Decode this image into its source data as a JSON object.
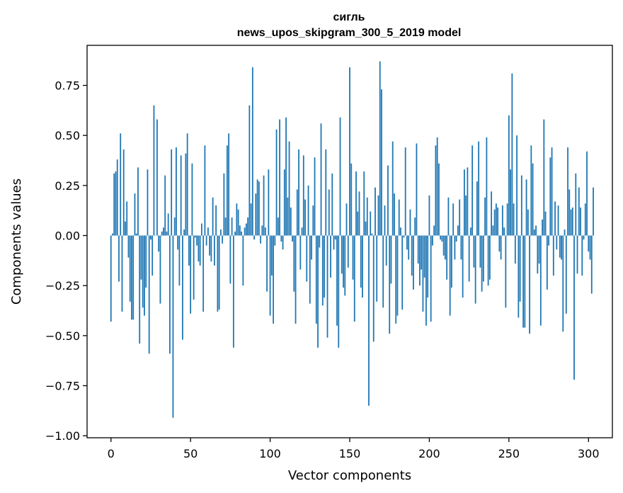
{
  "chart_data": {
    "type": "bar",
    "title_line1": "сигль",
    "title_line2": "news_upos_skipgram_300_5_2019 model",
    "xlabel": "Vector components",
    "ylabel": "Components values",
    "xlim": [
      -15,
      315
    ],
    "ylim": [
      -1.01,
      0.95
    ],
    "xticks": [
      0,
      50,
      100,
      150,
      200,
      250,
      300
    ],
    "xtick_labels": [
      "0",
      "50",
      "100",
      "150",
      "200",
      "250",
      "300"
    ],
    "yticks": [
      -1.0,
      -0.75,
      -0.5,
      -0.25,
      0.0,
      0.25,
      0.5,
      0.75
    ],
    "ytick_labels": [
      "−1.00",
      "−0.75",
      "−0.50",
      "−0.25",
      "0.00",
      "0.25",
      "0.50",
      "0.75"
    ],
    "bar_color": "#1f77b4",
    "values": [
      -0.43,
      0.01,
      0.31,
      0.32,
      0.38,
      -0.23,
      0.51,
      -0.38,
      0.43,
      0.07,
      0.17,
      -0.11,
      -0.33,
      -0.42,
      -0.42,
      0.21,
      0.01,
      0.34,
      -0.54,
      -0.22,
      -0.36,
      -0.4,
      -0.26,
      0.33,
      -0.59,
      -0.02,
      -0.2,
      0.65,
      0.0,
      0.58,
      -0.08,
      -0.34,
      0.02,
      0.04,
      0.3,
      0.02,
      0.11,
      -0.59,
      0.43,
      -0.91,
      0.09,
      0.44,
      -0.07,
      -0.25,
      0.4,
      -0.52,
      0.03,
      0.41,
      0.51,
      -0.15,
      -0.39,
      0.36,
      -0.32,
      -0.01,
      -0.05,
      -0.13,
      -0.15,
      0.06,
      -0.38,
      0.45,
      -0.05,
      0.04,
      -0.1,
      -0.13,
      0.19,
      -0.15,
      0.15,
      -0.38,
      -0.37,
      0.03,
      -0.04,
      0.31,
      0.09,
      0.45,
      0.51,
      -0.24,
      0.09,
      -0.56,
      0.02,
      0.16,
      0.13,
      0.05,
      0.02,
      -0.25,
      0.04,
      0.06,
      0.09,
      0.65,
      0.16,
      0.84,
      -0.02,
      0.21,
      0.28,
      0.27,
      -0.04,
      0.05,
      0.3,
      0.04,
      -0.28,
      0.33,
      -0.4,
      -0.2,
      -0.44,
      -0.05,
      0.53,
      0.09,
      0.58,
      -0.03,
      -0.07,
      0.33,
      0.59,
      0.19,
      0.47,
      0.14,
      -0.03,
      -0.28,
      -0.44,
      0.23,
      0.43,
      -0.17,
      0.04,
      0.4,
      0.18,
      -0.23,
      0.25,
      -0.34,
      -0.12,
      0.15,
      0.39,
      -0.44,
      -0.56,
      -0.06,
      0.56,
      -0.35,
      -0.31,
      0.43,
      -0.51,
      0.23,
      -0.21,
      0.31,
      -0.07,
      -0.02,
      -0.45,
      -0.56,
      0.59,
      -0.19,
      -0.26,
      -0.3,
      0.16,
      -0.16,
      0.84,
      0.36,
      -0.22,
      -0.43,
      0.32,
      0.12,
      0.22,
      -0.26,
      -0.31,
      0.32,
      0.07,
      0.19,
      -0.85,
      0.12,
      0.01,
      -0.53,
      0.24,
      -0.33,
      0.2,
      0.87,
      0.73,
      -0.36,
      0.15,
      -0.15,
      0.35,
      -0.49,
      -0.24,
      0.47,
      0.21,
      -0.44,
      -0.4,
      0.18,
      0.04,
      -0.37,
      -0.01,
      0.44,
      -0.07,
      -0.12,
      0.13,
      -0.2,
      -0.27,
      0.09,
      0.46,
      -0.14,
      -0.25,
      -0.17,
      -0.38,
      -0.21,
      -0.45,
      -0.31,
      0.2,
      -0.43,
      -0.05,
      0.05,
      0.45,
      0.49,
      0.36,
      -0.02,
      -0.03,
      -0.1,
      -0.12,
      -0.22,
      0.19,
      -0.4,
      -0.26,
      0.16,
      -0.12,
      -0.03,
      0.05,
      0.18,
      -0.12,
      -0.31,
      0.33,
      0.2,
      0.34,
      -0.23,
      0.04,
      0.45,
      -0.16,
      -0.34,
      0.27,
      0.47,
      -0.16,
      -0.28,
      -0.23,
      0.19,
      0.49,
      -0.25,
      -0.22,
      0.22,
      0.05,
      0.13,
      0.16,
      0.14,
      -0.08,
      -0.12,
      0.15,
      0.04,
      -0.36,
      0.16,
      0.6,
      0.33,
      0.81,
      0.16,
      -0.14,
      0.5,
      -0.41,
      -0.33,
      0.3,
      -0.46,
      -0.46,
      0.28,
      0.13,
      -0.49,
      0.45,
      0.36,
      0.03,
      0.05,
      -0.19,
      -0.14,
      -0.45,
      0.08,
      0.58,
      0.12,
      -0.27,
      -0.05,
      0.39,
      0.44,
      -0.2,
      0.17,
      -0.07,
      0.15,
      -0.11,
      -0.12,
      -0.48,
      0.03,
      -0.39,
      0.44,
      0.23,
      0.13,
      0.14,
      -0.72,
      0.31,
      -0.19,
      0.24,
      0.14,
      -0.2,
      -0.02,
      0.16,
      0.42,
      -0.08,
      -0.12,
      -0.29,
      0.24
    ]
  }
}
